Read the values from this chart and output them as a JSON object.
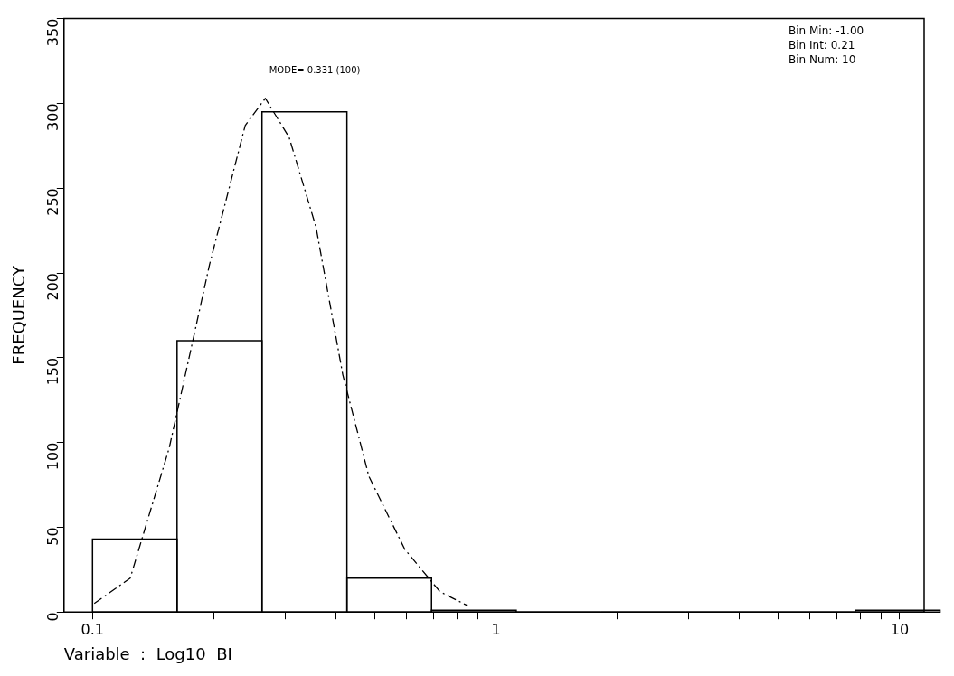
{
  "chart_data": {
    "type": "histogram",
    "xlabel": "Variable  :  Log10  BI",
    "ylabel": "FREQUENCY",
    "bins": [
      0.1,
      0.162,
      0.263,
      0.427,
      0.692,
      1.122,
      1.82,
      2.95,
      4.79,
      7.76,
      12.59
    ],
    "values": [
      43,
      160,
      295,
      20,
      1,
      0,
      0,
      0,
      0,
      1
    ],
    "color": "#000000",
    "series": [
      {
        "type": "line",
        "line_style": "dashed",
        "color": "#000000",
        "x": [
          0.101,
          0.124,
          0.155,
          0.195,
          0.239,
          0.268,
          0.307,
          0.358,
          0.417,
          0.484,
          0.594,
          0.726,
          0.846
        ],
        "values": [
          5,
          20,
          97,
          205,
          287,
          303,
          280,
          227,
          140,
          80,
          37,
          12,
          4
        ]
      }
    ],
    "log": "x",
    "xlim": [
      0.085,
      11.5
    ],
    "xticks": [
      0.1,
      {
        "value": 0.2,
        "label": null
      },
      {
        "value": 0.3,
        "label": null
      },
      {
        "value": 0.4,
        "label": null
      },
      {
        "value": 0.5,
        "label": null
      },
      {
        "value": 0.6,
        "label": null
      },
      {
        "value": 0.7,
        "label": null
      },
      {
        "value": 0.8,
        "label": null
      },
      {
        "value": 0.9,
        "label": null
      },
      1,
      {
        "value": 2,
        "label": null
      },
      {
        "value": 3,
        "label": null
      },
      {
        "value": 4,
        "label": null
      },
      {
        "value": 5,
        "label": null
      },
      {
        "value": 6,
        "label": null
      },
      {
        "value": 7,
        "label": null
      },
      {
        "value": 8,
        "label": null
      },
      {
        "value": 9,
        "label": null
      },
      10
    ],
    "ylim": [
      0,
      350
    ],
    "yticks": [
      0,
      50,
      100,
      150,
      200,
      250,
      300,
      350
    ],
    "grid": false,
    "legend": false,
    "annotations": [
      "MODE= 0.331 (100)",
      "Bin Min: -1.00",
      "Bin Int: 0.21",
      "Bin Num: 10"
    ]
  }
}
